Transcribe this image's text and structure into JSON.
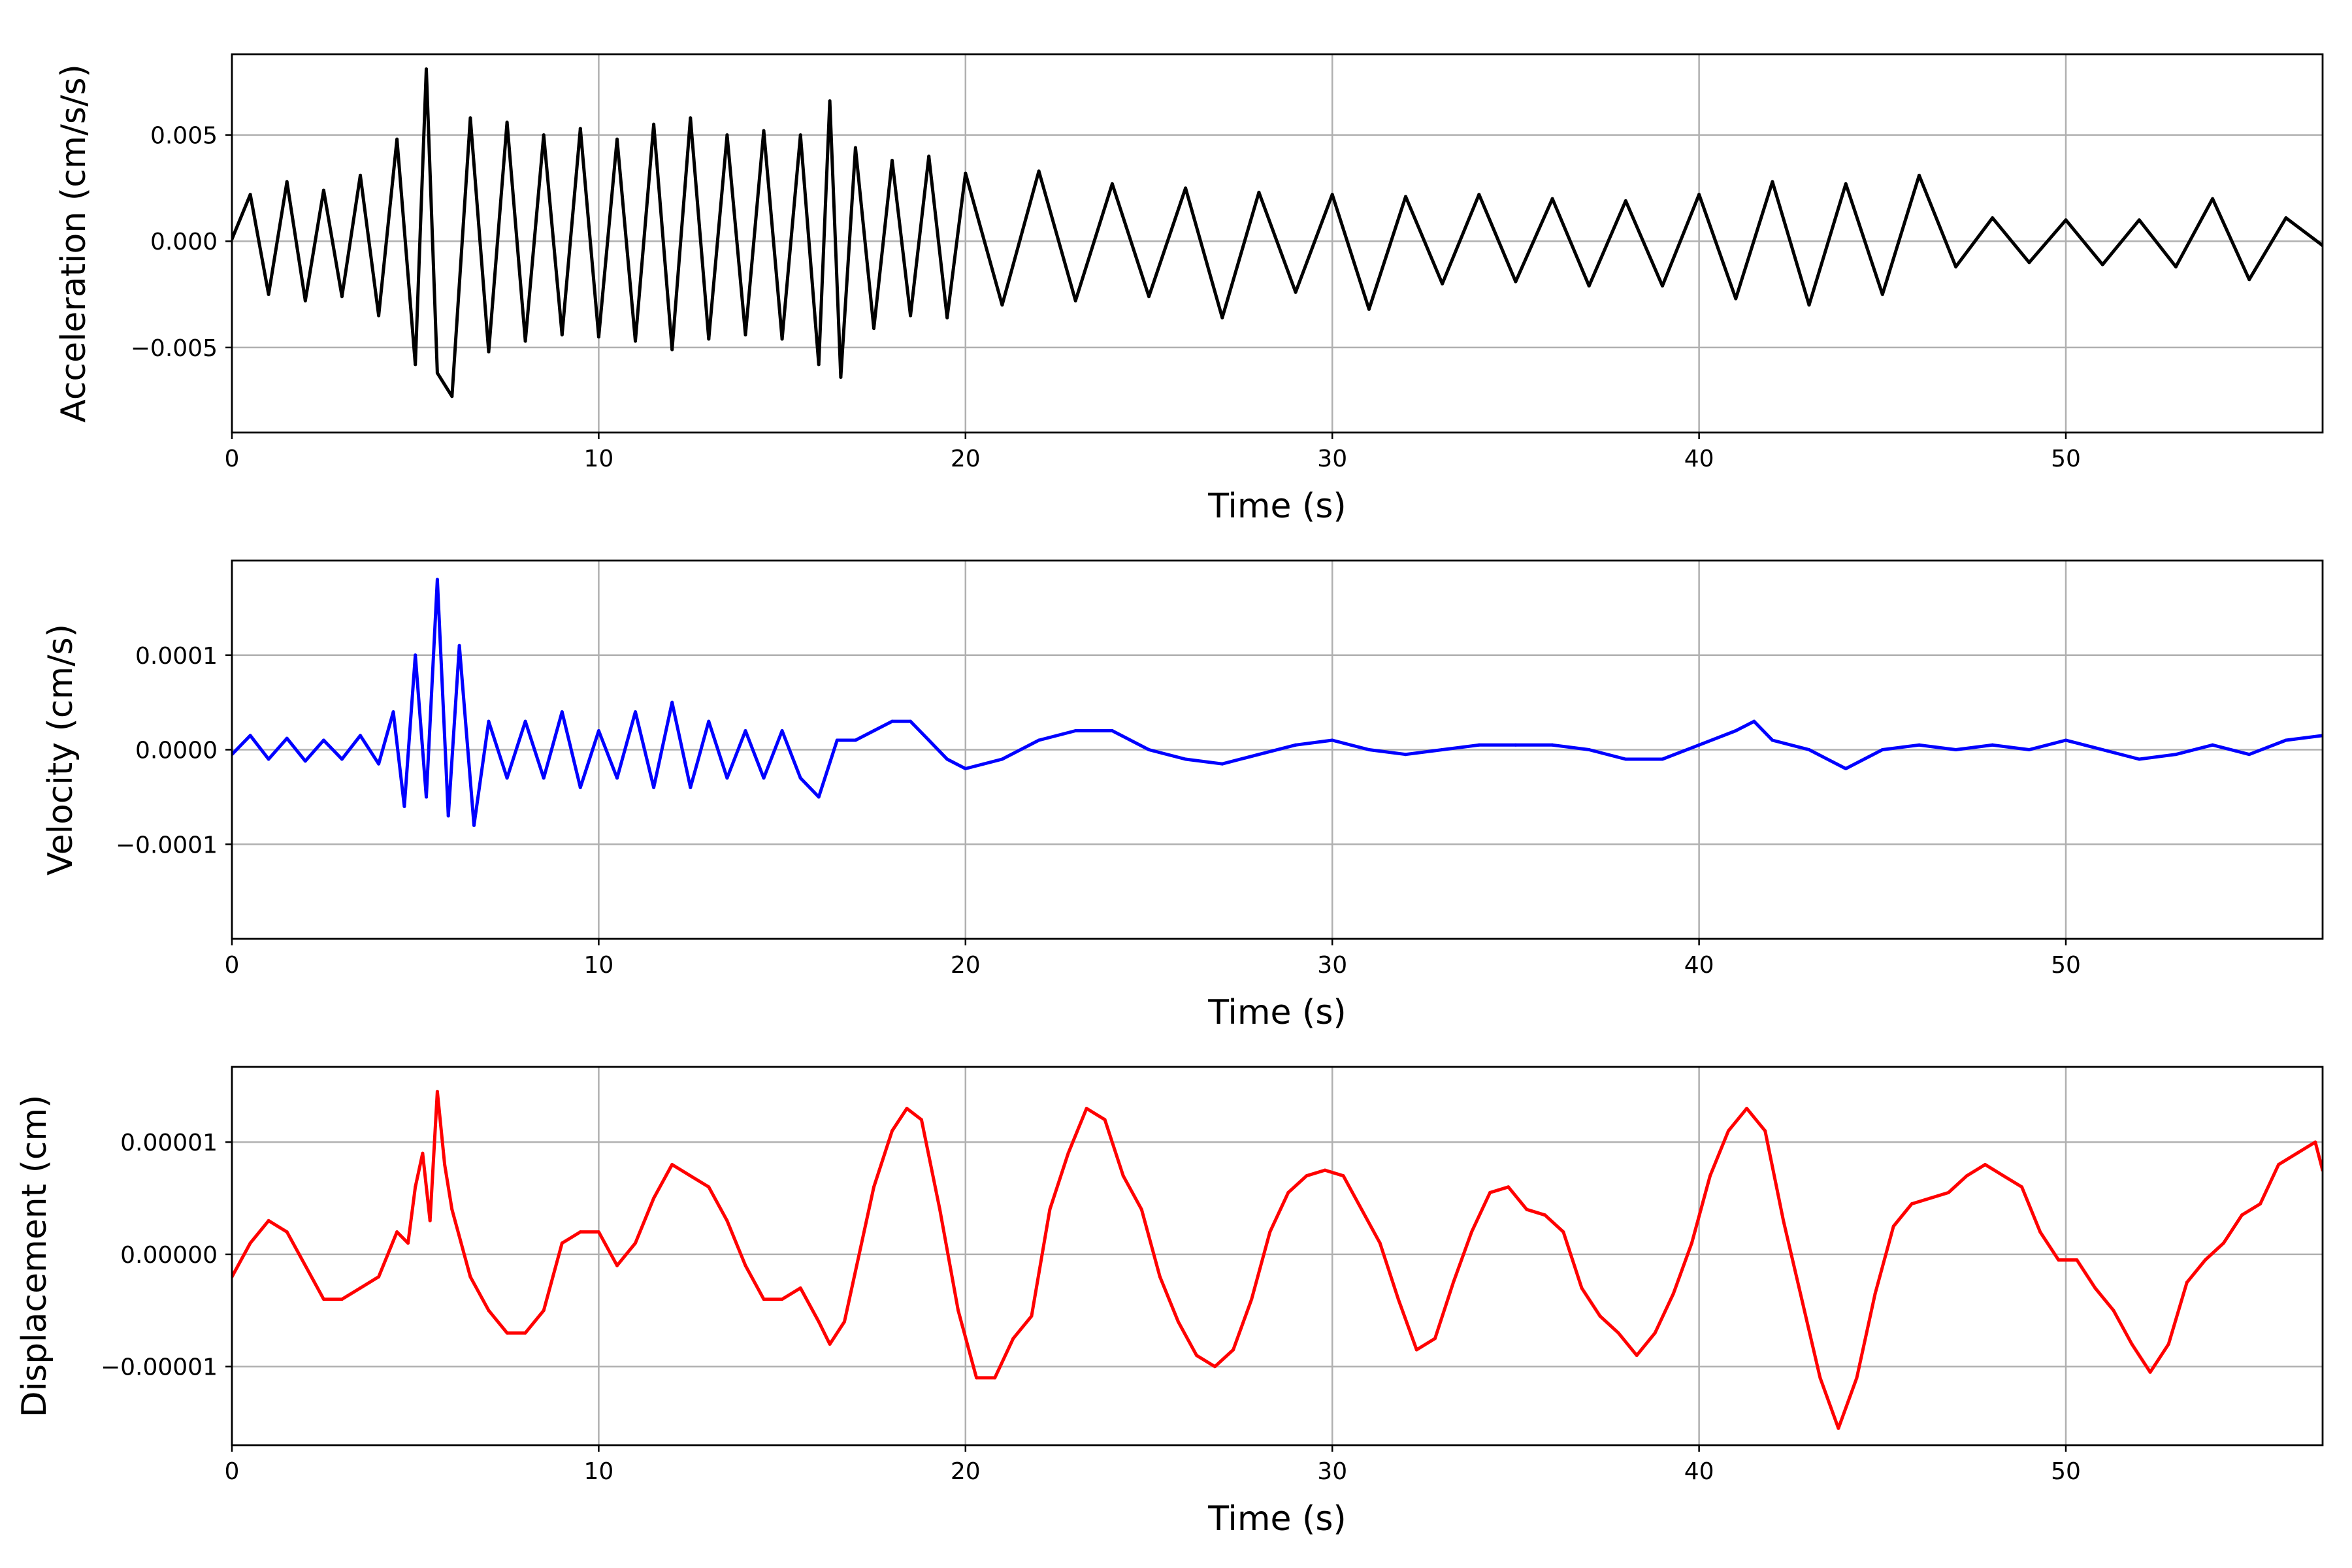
{
  "chart_data": [
    {
      "type": "line",
      "xlabel": "Time (s)",
      "ylabel": "Acceleration (cm/s/s)",
      "xlim": [
        0,
        57
      ],
      "ylim": [
        -0.009,
        0.0088
      ],
      "xticks": [
        0,
        10,
        20,
        30,
        40,
        50
      ],
      "xtick_labels": [
        "0",
        "10",
        "20",
        "30",
        "40",
        "50"
      ],
      "yticks": [
        0.005,
        0.0,
        -0.005
      ],
      "ytick_labels": [
        "0.005",
        "0.000",
        "−0.005"
      ],
      "grid": true,
      "series": [
        {
          "color": "#000000",
          "x": [
            0,
            0.5,
            1.0,
            1.5,
            2.0,
            2.5,
            3.0,
            3.5,
            4.0,
            4.5,
            5.0,
            5.3,
            5.6,
            6.0,
            6.5,
            7.0,
            7.5,
            8.0,
            8.5,
            9.0,
            9.5,
            10.0,
            10.5,
            11.0,
            11.5,
            12.0,
            12.5,
            13.0,
            13.5,
            14.0,
            14.5,
            15.0,
            15.5,
            16.0,
            16.3,
            16.6,
            17.0,
            17.5,
            18.0,
            18.5,
            19.0,
            19.5,
            20.0,
            21.0,
            22.0,
            23.0,
            24.0,
            25.0,
            26.0,
            27.0,
            28.0,
            29.0,
            30.0,
            31.0,
            32.0,
            33.0,
            34.0,
            35.0,
            36.0,
            37.0,
            38.0,
            39.0,
            40.0,
            41.0,
            42.0,
            43.0,
            44.0,
            45.0,
            46.0,
            47.0,
            48.0,
            49.0,
            50.0,
            51.0,
            52.0,
            53.0,
            54.0,
            55.0,
            56.0,
            57.0
          ],
          "values": [
            0.0001,
            0.0022,
            -0.0025,
            0.0028,
            -0.0028,
            0.0024,
            -0.0026,
            0.0031,
            -0.0035,
            0.0048,
            -0.0058,
            0.0081,
            -0.0062,
            -0.0073,
            0.0058,
            -0.0052,
            0.0056,
            -0.0047,
            0.005,
            -0.0044,
            0.0053,
            -0.0045,
            0.0048,
            -0.0047,
            0.0055,
            -0.0051,
            0.0058,
            -0.0046,
            0.005,
            -0.0044,
            0.0052,
            -0.0046,
            0.005,
            -0.0058,
            0.0066,
            -0.0064,
            0.0044,
            -0.0041,
            0.0038,
            -0.0035,
            0.004,
            -0.0036,
            0.0032,
            -0.003,
            0.0033,
            -0.0028,
            0.0027,
            -0.0026,
            0.0025,
            -0.0036,
            0.0023,
            -0.0024,
            0.0022,
            -0.0032,
            0.0021,
            -0.002,
            0.0022,
            -0.0019,
            0.002,
            -0.0021,
            0.0019,
            -0.0021,
            0.0022,
            -0.0027,
            0.0028,
            -0.003,
            0.0027,
            -0.0025,
            0.0031,
            -0.0012,
            0.0011,
            -0.001,
            0.001,
            -0.0011,
            0.001,
            -0.0012,
            0.002,
            -0.0018,
            0.0011,
            -0.0002
          ]
        }
      ]
    },
    {
      "type": "line",
      "xlabel": "Time (s)",
      "ylabel": "Velocity (cm/s)",
      "xlim": [
        0,
        57
      ],
      "ylim": [
        -0.0002,
        0.0002
      ],
      "xticks": [
        0,
        10,
        20,
        30,
        40,
        50
      ],
      "xtick_labels": [
        "0",
        "10",
        "20",
        "30",
        "40",
        "50"
      ],
      "yticks": [
        0.0001,
        0.0,
        -0.0001
      ],
      "ytick_labels": [
        "0.0001",
        "0.0000",
        "−0.0001"
      ],
      "grid": true,
      "series": [
        {
          "color": "#0000ff",
          "x": [
            0,
            0.5,
            1.0,
            1.5,
            2.0,
            2.5,
            3.0,
            3.5,
            4.0,
            4.4,
            4.7,
            5.0,
            5.3,
            5.6,
            5.9,
            6.2,
            6.6,
            7.0,
            7.5,
            8.0,
            8.5,
            9.0,
            9.5,
            10.0,
            10.5,
            11.0,
            11.5,
            12.0,
            12.5,
            13.0,
            13.5,
            14.0,
            14.5,
            15.0,
            15.5,
            16.0,
            16.5,
            17.0,
            17.5,
            18.0,
            18.5,
            19.0,
            19.5,
            20.0,
            21.0,
            22.0,
            23.0,
            24.0,
            25.0,
            26.0,
            27.0,
            28.0,
            29.0,
            30.0,
            31.0,
            32.0,
            33.0,
            34.0,
            35.0,
            36.0,
            37.0,
            38.0,
            39.0,
            40.0,
            41.0,
            41.5,
            42.0,
            43.0,
            44.0,
            45.0,
            46.0,
            47.0,
            48.0,
            49.0,
            50.0,
            51.0,
            52.0,
            53.0,
            54.0,
            55.0,
            56.0,
            57.0
          ],
          "values": [
            -5e-06,
            1.5e-05,
            -1e-05,
            1.2e-05,
            -1.2e-05,
            1e-05,
            -1e-05,
            1.5e-05,
            -1.5e-05,
            4e-05,
            -6e-05,
            0.0001,
            -5e-05,
            0.00018,
            -7e-05,
            0.00011,
            -8e-05,
            3e-05,
            -3e-05,
            3e-05,
            -3e-05,
            4e-05,
            -4e-05,
            2e-05,
            -3e-05,
            4e-05,
            -4e-05,
            5e-05,
            -4e-05,
            3e-05,
            -3e-05,
            2e-05,
            -3e-05,
            2e-05,
            -3e-05,
            -5e-05,
            1e-05,
            1e-05,
            2e-05,
            3e-05,
            3e-05,
            1e-05,
            -1e-05,
            -2e-05,
            -1e-05,
            1e-05,
            2e-05,
            2e-05,
            0.0,
            -1e-05,
            -1.5e-05,
            -5e-06,
            5e-06,
            1e-05,
            0.0,
            -5e-06,
            0.0,
            5e-06,
            5e-06,
            5e-06,
            0.0,
            -1e-05,
            -1e-05,
            5e-06,
            2e-05,
            3e-05,
            1e-05,
            0.0,
            -2e-05,
            0.0,
            5e-06,
            0.0,
            5e-06,
            0.0,
            1e-05,
            0.0,
            -1e-05,
            -5e-06,
            5e-06,
            -5e-06,
            1e-05,
            1.5e-05
          ]
        }
      ]
    },
    {
      "type": "line",
      "xlabel": "Time (s)",
      "ylabel": "Displacement (cm)",
      "xlim": [
        0,
        57
      ],
      "ylim": [
        -1.7e-05,
        1.67e-05
      ],
      "xticks": [
        0,
        10,
        20,
        30,
        40,
        50
      ],
      "xtick_labels": [
        "0",
        "10",
        "20",
        "30",
        "40",
        "50"
      ],
      "yticks": [
        1e-05,
        0.0,
        -1e-05
      ],
      "ytick_labels": [
        "0.00001",
        "0.00000",
        "−0.00001"
      ],
      "grid": true,
      "series": [
        {
          "color": "#ff0000",
          "x": [
            0,
            0.5,
            1.0,
            1.5,
            2.0,
            2.5,
            3.0,
            3.5,
            4.0,
            4.5,
            4.8,
            5.0,
            5.2,
            5.4,
            5.6,
            5.8,
            6.0,
            6.5,
            7.0,
            7.5,
            8.0,
            8.5,
            9.0,
            9.5,
            10.0,
            10.5,
            11.0,
            11.5,
            12.0,
            12.5,
            13.0,
            13.5,
            14.0,
            14.5,
            15.0,
            15.5,
            16.0,
            16.3,
            16.7,
            17.0,
            17.5,
            18.0,
            18.4,
            18.8,
            19.3,
            19.8,
            20.3,
            20.8,
            21.3,
            21.8,
            22.3,
            22.8,
            23.3,
            23.8,
            24.3,
            24.8,
            25.3,
            25.8,
            26.3,
            26.8,
            27.3,
            27.8,
            28.3,
            28.8,
            29.3,
            29.8,
            30.3,
            30.8,
            31.3,
            31.8,
            32.3,
            32.8,
            33.3,
            33.8,
            34.3,
            34.8,
            35.3,
            35.8,
            36.3,
            36.8,
            37.3,
            37.8,
            38.3,
            38.8,
            39.3,
            39.8,
            40.3,
            40.8,
            41.3,
            41.8,
            42.3,
            42.8,
            43.3,
            43.8,
            44.3,
            44.8,
            45.3,
            45.8,
            46.3,
            46.8,
            47.3,
            47.8,
            48.3,
            48.8,
            49.3,
            49.8,
            50.3,
            50.8,
            51.3,
            51.8,
            52.3,
            52.8,
            53.3,
            53.8,
            54.3,
            54.8,
            55.3,
            55.8,
            56.3,
            56.8,
            57.0
          ],
          "values": [
            -2e-06,
            1e-06,
            3e-06,
            2e-06,
            -1e-06,
            -4e-06,
            -4e-06,
            -3e-06,
            -2e-06,
            2e-06,
            1e-06,
            6e-06,
            9e-06,
            3e-06,
            1.45e-05,
            8e-06,
            4e-06,
            -2e-06,
            -5e-06,
            -7e-06,
            -7e-06,
            -5e-06,
            1e-06,
            2e-06,
            2e-06,
            -1e-06,
            1e-06,
            5e-06,
            8e-06,
            7e-06,
            6e-06,
            3e-06,
            -1e-06,
            -4e-06,
            -4e-06,
            -3e-06,
            -6e-06,
            -8e-06,
            -6e-06,
            -1.5e-06,
            6e-06,
            1.1e-05,
            1.3e-05,
            1.2e-05,
            4e-06,
            -5e-06,
            -1.1e-05,
            -1.1e-05,
            -7.5e-06,
            -5.5e-06,
            4e-06,
            9e-06,
            1.3e-05,
            1.2e-05,
            7e-06,
            4e-06,
            -2e-06,
            -6e-06,
            -9e-06,
            -1e-05,
            -8.5e-06,
            -4e-06,
            2e-06,
            5.5e-06,
            7e-06,
            7.5e-06,
            7e-06,
            4e-06,
            1e-06,
            -4e-06,
            -8.5e-06,
            -7.5e-06,
            -2.5e-06,
            2e-06,
            5.5e-06,
            6e-06,
            4e-06,
            3.5e-06,
            2e-06,
            -3e-06,
            -5.5e-06,
            -7e-06,
            -9e-06,
            -7e-06,
            -3.5e-06,
            1e-06,
            7e-06,
            1.1e-05,
            1.3e-05,
            1.1e-05,
            3e-06,
            -4e-06,
            -1.1e-05,
            -1.55e-05,
            -1.1e-05,
            -3.5e-06,
            2.5e-06,
            4.5e-06,
            5e-06,
            5.5e-06,
            7e-06,
            8e-06,
            7e-06,
            6e-06,
            2e-06,
            -5e-07,
            -5e-07,
            -3e-06,
            -5e-06,
            -8e-06,
            -1.05e-05,
            -8e-06,
            -2.5e-06,
            -5e-07,
            1e-06,
            3.5e-06,
            4.5e-06,
            8e-06,
            9e-06,
            1e-05,
            7.5e-06
          ]
        }
      ]
    }
  ]
}
